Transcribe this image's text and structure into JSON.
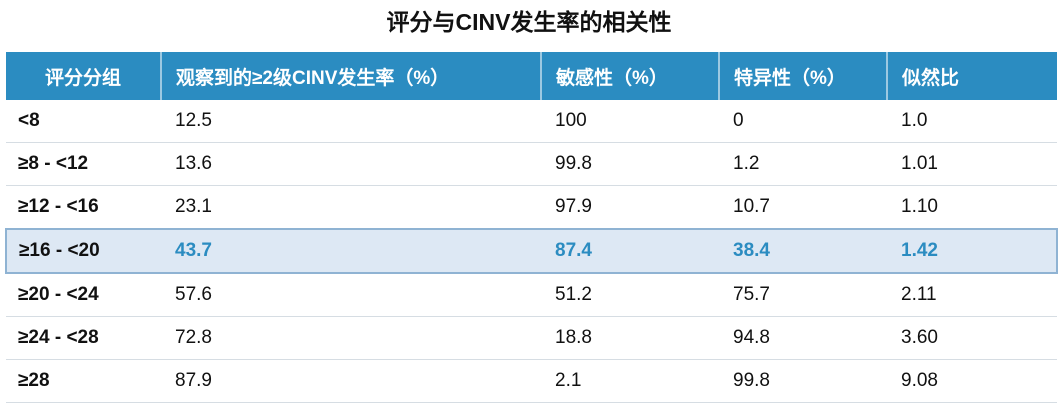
{
  "title": "评分与CINV发生率的相关性",
  "table": {
    "header": [
      "评分分组",
      "观察到的≥2级CINV发生率（%）",
      "敏感性（%）",
      "特异性（%）",
      "似然比"
    ],
    "rows": [
      [
        "<8",
        "12.5",
        "100",
        "0",
        "1.0"
      ],
      [
        "≥8 - <12",
        "13.6",
        "99.8",
        "1.2",
        "1.01"
      ],
      [
        "≥12 - <16",
        "23.1",
        "97.9",
        "10.7",
        "1.10"
      ],
      [
        "≥16 - <20",
        "43.7",
        "87.4",
        "38.4",
        "1.42"
      ],
      [
        "≥20 - <24",
        "57.6",
        "51.2",
        "75.7",
        "2.11"
      ],
      [
        "≥24 - <28",
        "72.8",
        "18.8",
        "94.8",
        "3.60"
      ],
      [
        "≥28",
        "87.9",
        "2.1",
        "99.8",
        "9.08"
      ]
    ]
  }
}
